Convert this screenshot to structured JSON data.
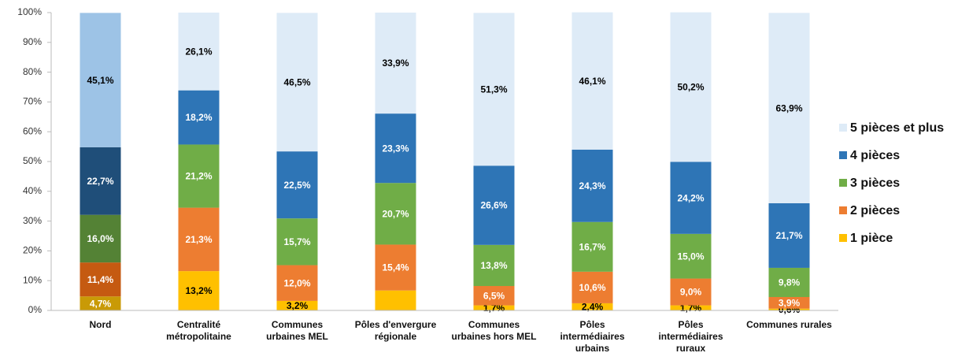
{
  "chart_data": {
    "type": "stacked_bar",
    "categories": [
      "Nord",
      "Centralité métropolitaine",
      "Communes urbaines MEL",
      "Pôles d'envergure régionale",
      "Communes urbaines hors MEL",
      "Pôles intermédiaires urbains",
      "Pôles intermédiaires ruraux",
      "Communes rurales"
    ],
    "series": [
      {
        "name": "1 pièce",
        "colors": [
          "#c99a06",
          "#ffc000",
          "#ffc000",
          "#ffc000",
          "#ffc000",
          "#ffc000",
          "#ffc000",
          "#ffc000"
        ],
        "values": [
          4.7,
          13.2,
          3.2,
          6.7,
          1.7,
          2.4,
          1.7,
          0.6
        ],
        "value_labels": [
          "4,7%",
          "13,2%",
          "3,2%",
          null,
          "1,7%",
          "2,4%",
          "1,7%",
          "0,6%"
        ]
      },
      {
        "name": "2 pièces",
        "colors": [
          "#c55a11",
          "#ed7d31",
          "#ed7d31",
          "#ed7d31",
          "#ed7d31",
          "#ed7d31",
          "#ed7d31",
          "#ed7d31"
        ],
        "values": [
          11.4,
          21.3,
          12.0,
          15.4,
          6.5,
          10.6,
          9.0,
          3.9
        ],
        "value_labels": [
          "11,4%",
          "21,3%",
          "12,0%",
          "15,4%",
          "6,5%",
          "10,6%",
          "9,0%",
          "3,9%"
        ]
      },
      {
        "name": "3 pièces",
        "colors": [
          "#548235",
          "#70ad47",
          "#70ad47",
          "#70ad47",
          "#70ad47",
          "#70ad47",
          "#70ad47",
          "#70ad47"
        ],
        "values": [
          16.0,
          21.2,
          15.7,
          20.7,
          13.8,
          16.7,
          15.0,
          9.8
        ],
        "value_labels": [
          "16,0%",
          "21,2%",
          "15,7%",
          "20,7%",
          "13,8%",
          "16,7%",
          "15,0%",
          "9,8%"
        ]
      },
      {
        "name": "4 pièces",
        "colors": [
          "#1f4e79",
          "#2e75b6",
          "#2e75b6",
          "#2e75b6",
          "#2e75b6",
          "#2e75b6",
          "#2e75b6",
          "#2e75b6"
        ],
        "values": [
          22.7,
          18.2,
          22.5,
          23.3,
          26.6,
          24.3,
          24.2,
          21.7
        ],
        "value_labels": [
          "22,7%",
          "18,2%",
          "22,5%",
          "23,3%",
          "26,6%",
          "24,3%",
          "24,2%",
          "21,7%"
        ]
      },
      {
        "name": "5 pièces et plus",
        "colors": [
          "#9dc3e6",
          "#deebf7",
          "#deebf7",
          "#deebf7",
          "#deebf7",
          "#deebf7",
          "#deebf7",
          "#deebf7"
        ],
        "values": [
          45.1,
          26.1,
          46.5,
          33.9,
          51.3,
          46.1,
          50.2,
          63.9
        ],
        "value_labels": [
          "45,1%",
          "26,1%",
          "46,5%",
          "33,9%",
          "51,3%",
          "46,1%",
          "50,2%",
          "63,9%"
        ]
      }
    ],
    "ylim": [
      0,
      100
    ],
    "yticks": [
      {
        "value": 0,
        "label": "0%"
      },
      {
        "value": 10,
        "label": "10%"
      },
      {
        "value": 20,
        "label": "20%"
      },
      {
        "value": 30,
        "label": "30%"
      },
      {
        "value": 40,
        "label": "40%"
      },
      {
        "value": 50,
        "label": "50%"
      },
      {
        "value": 60,
        "label": "60%"
      },
      {
        "value": 70,
        "label": "70%"
      },
      {
        "value": 80,
        "label": "80%"
      },
      {
        "value": 90,
        "label": "90%"
      },
      {
        "value": 100,
        "label": "100%"
      }
    ],
    "grid": false,
    "legend": "right"
  }
}
